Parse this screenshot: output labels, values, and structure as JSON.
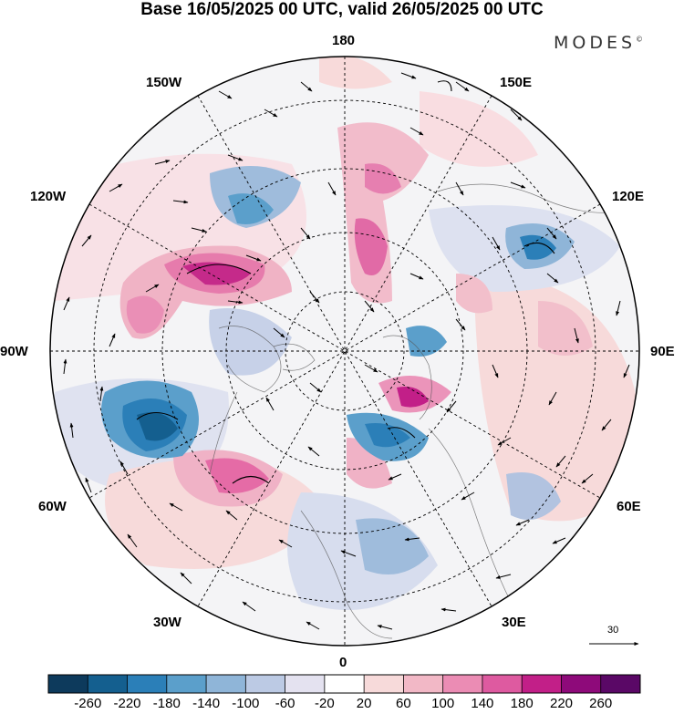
{
  "title": "Base 16/05/2025 00 UTC, valid 26/05/2025 00 UTC",
  "brand": "MODES",
  "brand_mark": "©",
  "longitude_labels": {
    "lon_180": "180",
    "lon_150e": "150E",
    "lon_120e": "120E",
    "lon_90e": "90E",
    "lon_60e": "60E",
    "lon_30e": "30E",
    "lon_0": "0",
    "lon_30w": "30W",
    "lon_60w": "60W",
    "lon_90w": "90W",
    "lon_120w": "120W",
    "lon_150w": "150W"
  },
  "reference_vector": "30",
  "colorbar": {
    "ticks": [
      "-260",
      "-220",
      "-180",
      "-140",
      "-100",
      "-60",
      "-20",
      "20",
      "60",
      "100",
      "140",
      "180",
      "220",
      "260"
    ],
    "colors": [
      "#0d3a5c",
      "#145f8f",
      "#2b7fb8",
      "#5b9fcb",
      "#8fb5d8",
      "#bccae4",
      "#e4e2f0",
      "#ffffff",
      "#f7dada",
      "#f2b8c6",
      "#eb8cb4",
      "#de5aa0",
      "#c21f88",
      "#8e0a7a",
      "#5a0866"
    ]
  },
  "map": {
    "projection": "north-polar-stereographic",
    "anomaly_centers": [
      {
        "name": "north-america-ridge",
        "sign": "positive",
        "magnitude": 180
      },
      {
        "name": "hudson-bay-trough",
        "sign": "negative",
        "magnitude": 220
      },
      {
        "name": "north-atlantic-ridge",
        "sign": "positive",
        "magnitude": 160
      },
      {
        "name": "siberia-trough",
        "sign": "negative",
        "magnitude": 180
      },
      {
        "name": "east-siberian-ridge",
        "sign": "positive",
        "magnitude": 180
      },
      {
        "name": "kara-sea-ridge",
        "sign": "positive",
        "magnitude": 200
      },
      {
        "name": "barents-trough",
        "sign": "negative",
        "magnitude": 180
      },
      {
        "name": "european-trough",
        "sign": "negative",
        "magnitude": 140
      },
      {
        "name": "central-asia-ridge",
        "sign": "positive",
        "magnitude": 100
      }
    ]
  }
}
